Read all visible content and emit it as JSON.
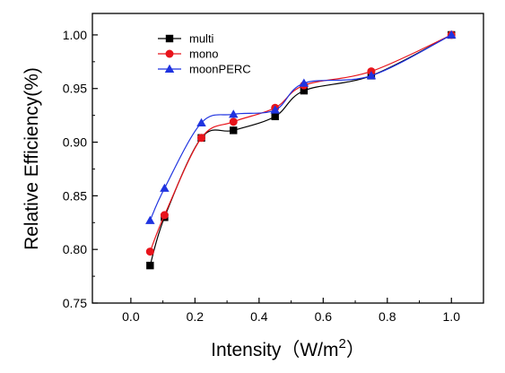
{
  "chart_data": {
    "type": "line",
    "title": "",
    "xlabel": "Intensity（W/m",
    "xlabel_sup": "2",
    "xlabel_close": "）",
    "ylabel": "Relative Efficiency(%)",
    "xlim": [
      -0.12,
      1.1
    ],
    "ylim": [
      0.75,
      1.02
    ],
    "xticks": [
      0.0,
      0.2,
      0.4,
      0.6,
      0.8,
      1.0
    ],
    "xtick_labels": [
      "0.0",
      "0.2",
      "0.4",
      "0.6",
      "0.8",
      "1.0"
    ],
    "yticks": [
      0.75,
      0.8,
      0.85,
      0.9,
      0.95,
      1.0
    ],
    "ytick_labels": [
      "0.75",
      "0.80",
      "0.85",
      "0.90",
      "0.95",
      "1.00"
    ],
    "grid": false,
    "legend_position": "top-left",
    "series": [
      {
        "name": "multi",
        "marker": "square",
        "color": "#000000",
        "x": [
          0.06,
          0.105,
          0.22,
          0.32,
          0.45,
          0.54,
          0.75,
          1.0
        ],
        "y": [
          0.785,
          0.83,
          0.904,
          0.911,
          0.924,
          0.948,
          0.962,
          1.0
        ]
      },
      {
        "name": "mono",
        "marker": "circle",
        "color": "#e8141b",
        "x": [
          0.06,
          0.105,
          0.22,
          0.32,
          0.45,
          0.54,
          0.75,
          1.0
        ],
        "y": [
          0.798,
          0.832,
          0.904,
          0.919,
          0.932,
          0.953,
          0.966,
          1.0
        ]
      },
      {
        "name": "moonPERC",
        "marker": "triangle",
        "color": "#1f33e0",
        "x": [
          0.06,
          0.105,
          0.22,
          0.32,
          0.45,
          0.54,
          0.75,
          1.0
        ],
        "y": [
          0.827,
          0.857,
          0.918,
          0.926,
          0.93,
          0.955,
          0.962,
          1.0
        ]
      }
    ]
  }
}
